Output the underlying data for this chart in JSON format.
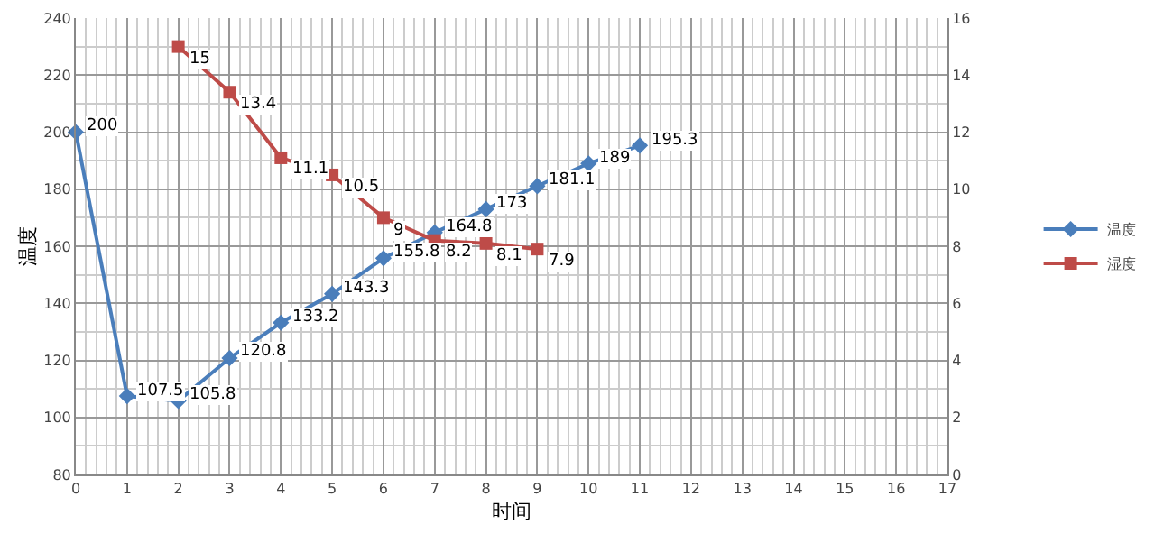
{
  "chart_data": {
    "type": "line",
    "xlabel": "时间",
    "ylabel": "温度",
    "xlim": [
      0,
      17
    ],
    "xticks": [
      0,
      1,
      2,
      3,
      4,
      5,
      6,
      7,
      8,
      9,
      10,
      11,
      12,
      13,
      14,
      15,
      16,
      17
    ],
    "ylim": [
      80,
      240
    ],
    "yticks": [
      80,
      100,
      120,
      140,
      160,
      180,
      200,
      220,
      240
    ],
    "y2lim": [
      0,
      16
    ],
    "y2ticks": [
      0,
      2,
      4,
      6,
      8,
      10,
      12,
      14,
      16
    ],
    "grid": true,
    "legend": "right",
    "line_style": "solid",
    "data_labels": true,
    "series": [
      {
        "name": "温度",
        "color": "#4a7ebb",
        "marker": "diamond",
        "x": [
          0,
          1,
          2,
          3,
          4,
          5,
          6,
          7,
          8,
          9,
          10,
          11
        ],
        "values": [
          200,
          107.5,
          105.8,
          120.8,
          133.2,
          143.3,
          155.8,
          164.8,
          173,
          181.1,
          189,
          195.3
        ]
      },
      {
        "name": "湿度",
        "color": "#be4b48",
        "marker": "square",
        "axis": "y2",
        "x": [
          2,
          3,
          4,
          5,
          6,
          7,
          8,
          9
        ],
        "values": [
          15,
          13.4,
          11.1,
          10.5,
          9,
          8.2,
          8.1,
          7.9
        ]
      }
    ]
  }
}
